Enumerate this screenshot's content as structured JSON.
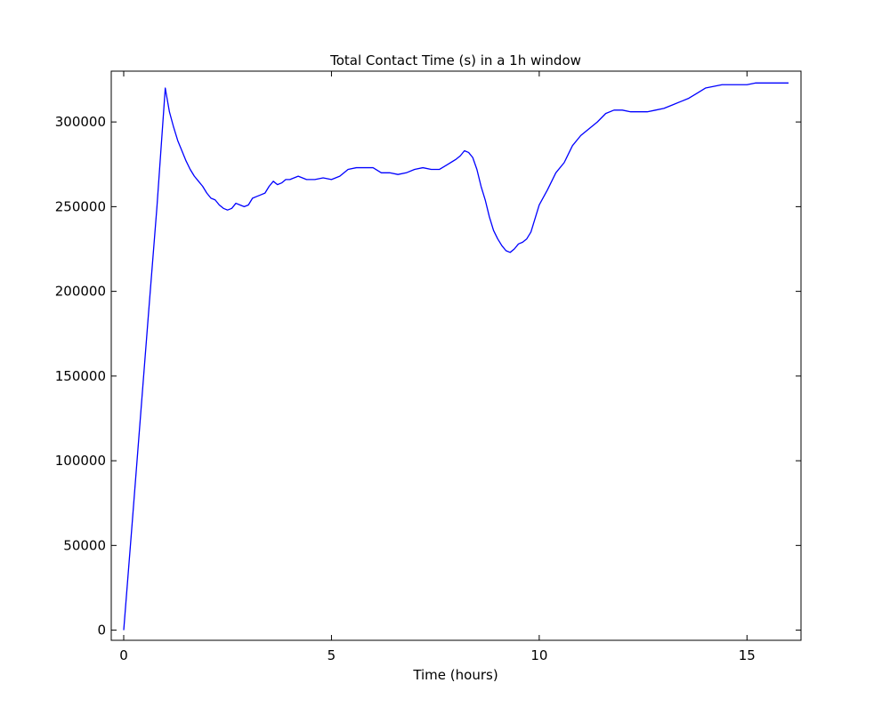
{
  "chart_data": {
    "type": "line",
    "title": "Total Contact Time (s) in a 1h window",
    "xlabel": "Time (hours)",
    "ylabel": "",
    "xlim": [
      -0.3,
      16.3
    ],
    "ylim": [
      -6000,
      330000
    ],
    "xticks": [
      0,
      5,
      10,
      15
    ],
    "xtick_labels": [
      "0",
      "5",
      "10",
      "15"
    ],
    "yticks": [
      0,
      50000,
      100000,
      150000,
      200000,
      250000,
      300000
    ],
    "ytick_labels": [
      "0",
      "50000",
      "100000",
      "150000",
      "200000",
      "250000",
      "300000"
    ],
    "grid": false,
    "legend": "none",
    "series": [
      {
        "name": "",
        "color": "#0000ff",
        "points": [
          [
            0,
            0
          ],
          [
            0.2,
            62000
          ],
          [
            0.4,
            125000
          ],
          [
            0.6,
            188000
          ],
          [
            0.8,
            250000
          ],
          [
            1.0,
            320000
          ],
          [
            1.1,
            306000
          ],
          [
            1.2,
            297000
          ],
          [
            1.3,
            289000
          ],
          [
            1.4,
            283000
          ],
          [
            1.5,
            277000
          ],
          [
            1.6,
            272000
          ],
          [
            1.7,
            268000
          ],
          [
            1.8,
            265000
          ],
          [
            1.9,
            262000
          ],
          [
            2.0,
            258000
          ],
          [
            2.1,
            255000
          ],
          [
            2.2,
            254000
          ],
          [
            2.3,
            251000
          ],
          [
            2.4,
            249000
          ],
          [
            2.5,
            248000
          ],
          [
            2.6,
            249000
          ],
          [
            2.7,
            252000
          ],
          [
            2.8,
            251000
          ],
          [
            2.9,
            250000
          ],
          [
            3.0,
            251000
          ],
          [
            3.1,
            255000
          ],
          [
            3.2,
            256000
          ],
          [
            3.3,
            257000
          ],
          [
            3.4,
            258000
          ],
          [
            3.5,
            262000
          ],
          [
            3.6,
            265000
          ],
          [
            3.7,
            263000
          ],
          [
            3.8,
            264000
          ],
          [
            3.9,
            266000
          ],
          [
            4.0,
            266000
          ],
          [
            4.2,
            268000
          ],
          [
            4.4,
            266000
          ],
          [
            4.6,
            266000
          ],
          [
            4.8,
            267000
          ],
          [
            5.0,
            266000
          ],
          [
            5.2,
            268000
          ],
          [
            5.4,
            272000
          ],
          [
            5.6,
            273000
          ],
          [
            5.8,
            273000
          ],
          [
            6.0,
            273000
          ],
          [
            6.2,
            270000
          ],
          [
            6.4,
            270000
          ],
          [
            6.6,
            269000
          ],
          [
            6.8,
            270000
          ],
          [
            7.0,
            272000
          ],
          [
            7.2,
            273000
          ],
          [
            7.4,
            272000
          ],
          [
            7.6,
            272000
          ],
          [
            7.8,
            275000
          ],
          [
            8.0,
            278000
          ],
          [
            8.1,
            280000
          ],
          [
            8.2,
            283000
          ],
          [
            8.3,
            282000
          ],
          [
            8.4,
            279000
          ],
          [
            8.5,
            272000
          ],
          [
            8.6,
            262000
          ],
          [
            8.7,
            254000
          ],
          [
            8.8,
            244000
          ],
          [
            8.9,
            236000
          ],
          [
            9.0,
            231000
          ],
          [
            9.1,
            227000
          ],
          [
            9.2,
            224000
          ],
          [
            9.3,
            223000
          ],
          [
            9.4,
            225000
          ],
          [
            9.5,
            228000
          ],
          [
            9.6,
            229000
          ],
          [
            9.7,
            231000
          ],
          [
            9.8,
            235000
          ],
          [
            9.9,
            243000
          ],
          [
            10.0,
            251000
          ],
          [
            10.2,
            260000
          ],
          [
            10.4,
            270000
          ],
          [
            10.6,
            276000
          ],
          [
            10.8,
            286000
          ],
          [
            11.0,
            292000
          ],
          [
            11.2,
            296000
          ],
          [
            11.4,
            300000
          ],
          [
            11.6,
            305000
          ],
          [
            11.8,
            307000
          ],
          [
            12.0,
            307000
          ],
          [
            12.2,
            306000
          ],
          [
            12.4,
            306000
          ],
          [
            12.6,
            306000
          ],
          [
            12.8,
            307000
          ],
          [
            13.0,
            308000
          ],
          [
            13.2,
            310000
          ],
          [
            13.4,
            312000
          ],
          [
            13.6,
            314000
          ],
          [
            13.8,
            317000
          ],
          [
            14.0,
            320000
          ],
          [
            14.2,
            321000
          ],
          [
            14.4,
            322000
          ],
          [
            14.6,
            322000
          ],
          [
            14.8,
            322000
          ],
          [
            15.0,
            322000
          ],
          [
            15.2,
            323000
          ],
          [
            15.4,
            323000
          ],
          [
            15.6,
            323000
          ],
          [
            15.8,
            323000
          ],
          [
            16.0,
            323000
          ]
        ]
      }
    ]
  }
}
